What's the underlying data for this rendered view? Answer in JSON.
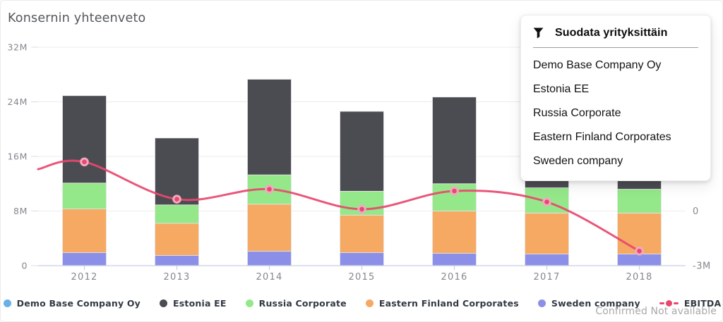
{
  "card": {
    "title": "Konsernin yhteenveto"
  },
  "filter_panel": {
    "icon": "funnel-icon",
    "title": "Suodata yrityksittäin",
    "items": [
      "Demo Base Company Oy",
      "Estonia EE",
      "Russia Corporate",
      "Eastern Finland Corporates",
      "Sweden company"
    ]
  },
  "legend": {
    "items": [
      {
        "label": "Demo Base Company Oy",
        "color": "#6ab0e8",
        "swatch": "dot"
      },
      {
        "label": "Estonia EE",
        "color": "#4b4b52",
        "swatch": "dot"
      },
      {
        "label": "Russia Corporate",
        "color": "#95e88a",
        "swatch": "dot"
      },
      {
        "label": "Eastern Finland Corporates",
        "color": "#f5a963",
        "swatch": "dot"
      },
      {
        "label": "Sweden company",
        "color": "#8b8fe8",
        "swatch": "dot"
      },
      {
        "label": "EBITDA",
        "color": "#e8486f",
        "swatch": "line-dot"
      }
    ]
  },
  "footer": {
    "note": "Confirmed Not available"
  },
  "chart_data": {
    "type": "bar",
    "subtype": "stacked-bars-with-line-overlay",
    "title": "Konsernin yhteenveto",
    "categories": [
      "2012",
      "2013",
      "2014",
      "2015",
      "2016",
      "2017",
      "2018"
    ],
    "stack_order": "bottom-to-top",
    "series": [
      {
        "name": "Sweden company",
        "color": "#8b8fe8",
        "values": [
          1.9,
          1.5,
          2.1,
          1.9,
          1.8,
          1.7,
          1.7
        ]
      },
      {
        "name": "Eastern Finland Corporates",
        "color": "#f5a963",
        "values": [
          6.4,
          4.7,
          6.9,
          5.5,
          6.2,
          6.0,
          6.0
        ]
      },
      {
        "name": "Russia Corporate",
        "color": "#95e88a",
        "values": [
          3.8,
          2.7,
          4.3,
          3.5,
          4.0,
          3.7,
          3.5
        ]
      },
      {
        "name": "Estonia EE",
        "color": "#4b4b52",
        "values": [
          12.8,
          9.8,
          14.0,
          11.7,
          12.7,
          9.8,
          9.4
        ]
      },
      {
        "name": "Demo Base Company Oy",
        "color": "#6ab0e8",
        "values": [
          0,
          0,
          0,
          0,
          0,
          0,
          0
        ]
      }
    ],
    "line": {
      "name": "EBITDA",
      "axis": "right",
      "color": "#e8486f",
      "dot_ring": "#f0a9bd",
      "values": [
        2.7,
        0.65,
        1.2,
        0.1,
        1.1,
        0.5,
        -2.2
      ],
      "edge_lead_in": 2.3
    },
    "left_axis": {
      "unit": "M",
      "min": 0,
      "max": 32,
      "ticks": [
        {
          "label": "32M",
          "value": 32
        },
        {
          "label": "24M",
          "value": 24
        },
        {
          "label": "16M",
          "value": 16
        },
        {
          "label": "8M",
          "value": 8
        },
        {
          "label": "0",
          "value": 0
        }
      ]
    },
    "right_axis": {
      "unit": "M",
      "min": -3,
      "max": 9,
      "ticks": [
        {
          "label": "0",
          "value": 0
        },
        {
          "label": "-3M",
          "value": -3
        }
      ]
    },
    "grid": true,
    "legend_position": "bottom"
  }
}
